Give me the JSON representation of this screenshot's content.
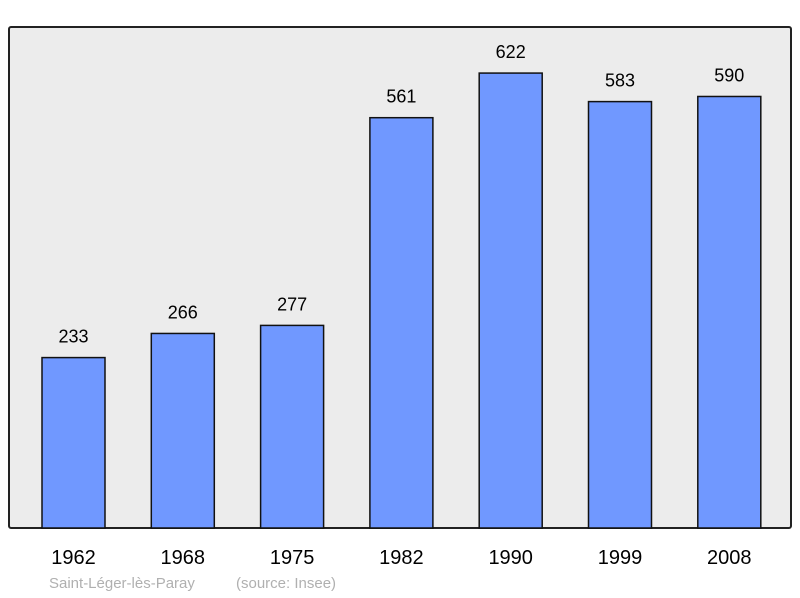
{
  "chart_data": {
    "type": "bar",
    "categories": [
      "1962",
      "1968",
      "1975",
      "1982",
      "1990",
      "1999",
      "2008"
    ],
    "values": [
      233,
      266,
      277,
      561,
      622,
      583,
      590
    ],
    "ylim": [
      0,
      685
    ],
    "grid": false,
    "bar_color": "#7098ff",
    "background_color": "#ececec",
    "data_labels": true
  },
  "footer": {
    "place": "Saint-Léger-lès-Paray",
    "source": "(source: Insee)"
  }
}
